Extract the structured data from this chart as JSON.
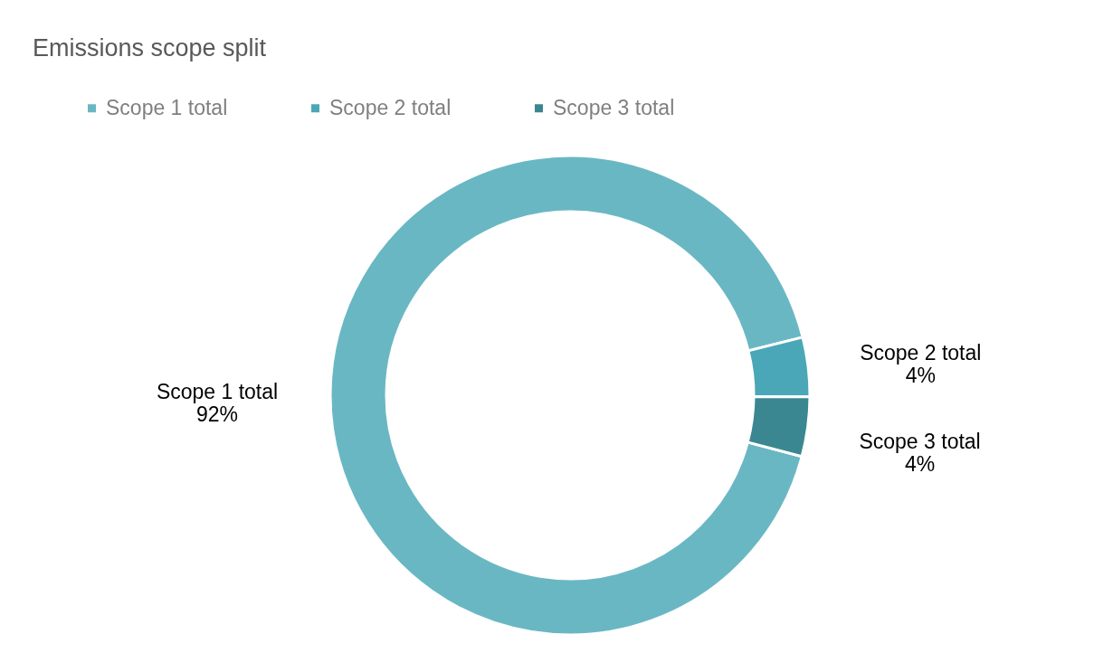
{
  "chart_data": {
    "type": "donut",
    "title": "Emissions scope split",
    "categories": [
      "Scope 1 total",
      "Scope 2 total",
      "Scope 3 total"
    ],
    "values": [
      92,
      4,
      4
    ],
    "colors": [
      "#6ab7c4",
      "#4aa7b8",
      "#3a8791"
    ],
    "value_labels": [
      "92%",
      "4%",
      "4%"
    ],
    "legend": "top left"
  }
}
